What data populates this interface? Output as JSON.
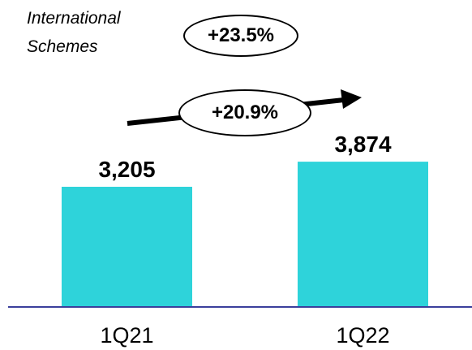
{
  "subtitle": {
    "line1": "International",
    "line2": "Schemes"
  },
  "annotations": {
    "top_change": "+23.5%",
    "growth_change": "+20.9%"
  },
  "colors": {
    "bar": "#2ed3da",
    "axis": "#3b3f9c",
    "text": "#000000",
    "arrow": "#000000"
  },
  "chart_data": {
    "type": "bar",
    "categories": [
      "1Q21",
      "1Q22"
    ],
    "values": [
      3205,
      3874
    ],
    "data_labels": [
      "3,205",
      "3,874"
    ],
    "title": "",
    "xlabel": "",
    "ylabel": "",
    "ylim": [
      0,
      4400
    ],
    "grid": false,
    "legend": "none"
  }
}
